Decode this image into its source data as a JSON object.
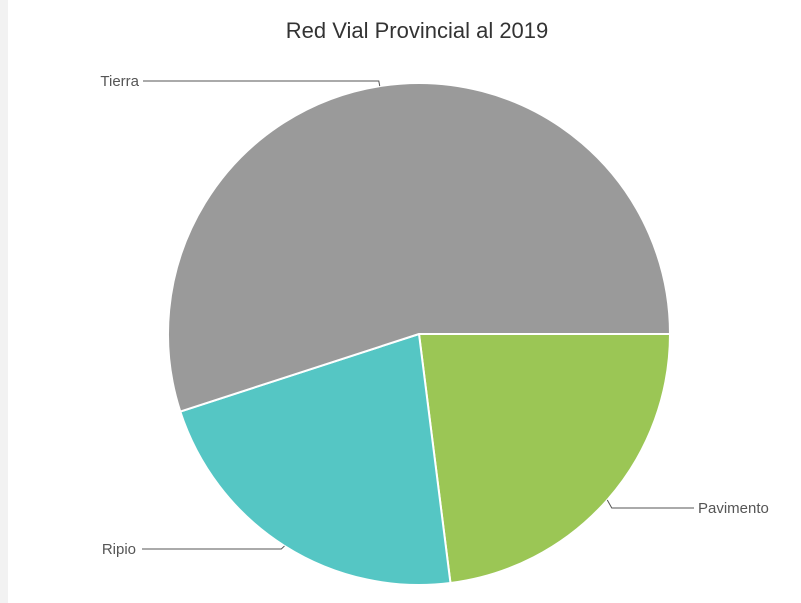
{
  "chart_data": {
    "type": "pie",
    "title": "Red Vial Provincial al 2019",
    "categories": [
      "Pavimento",
      "Ripio",
      "Tierra"
    ],
    "values": [
      23,
      22,
      55
    ],
    "unit": "%",
    "colors": [
      "#9bc655",
      "#55c6c4",
      "#9a9a9a"
    ],
    "start_angle_deg": 0,
    "direction": "clockwise",
    "legend": "none",
    "labels": "outside-with-leader-lines"
  }
}
